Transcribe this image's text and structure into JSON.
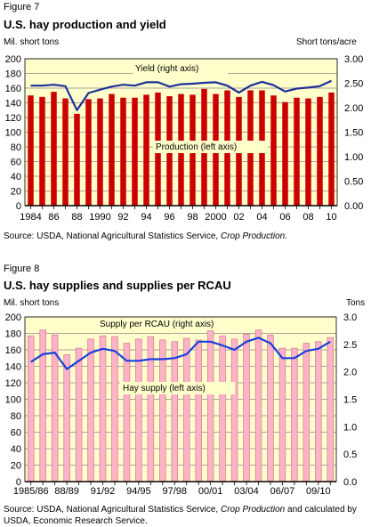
{
  "figure7": {
    "label": "Figure 7",
    "title": "U.S. hay production and yield",
    "left_unit": "Mil. short tons",
    "right_unit": "Short tons/acre",
    "source_prefix": "Source: USDA, National Agricultural Statistics Service, ",
    "source_italic": "Crop Production",
    "source_suffix": "."
  },
  "figure8": {
    "label": "Figure 8",
    "title": "U.S. hay supplies and supplies per RCAU",
    "left_unit": "Mil. short tons",
    "right_unit": "Tons",
    "source_prefix": "Source: USDA, National Agricultural Statistics Service, ",
    "source_italic": "Crop Production",
    "source_suffix": " and calculated by USDA, Economic Research Service."
  },
  "chart_data": [
    {
      "type": "bar",
      "title": "U.S. hay production and yield",
      "colors": {
        "bar": "#cc0000",
        "line": "#1f2f99",
        "plot_bg": "#ffffcc",
        "grid": "#888888"
      },
      "xtick_labels": [
        "1984",
        "86",
        "88",
        "1990",
        "92",
        "94",
        "96",
        "98",
        "2000",
        "02",
        "04",
        "06",
        "08",
        "10"
      ],
      "categories": [
        "1984",
        "1985",
        "1986",
        "1987",
        "1988",
        "1989",
        "1990",
        "1991",
        "1992",
        "1993",
        "1994",
        "1995",
        "1996",
        "1997",
        "1998",
        "1999",
        "2000",
        "2001",
        "2002",
        "2003",
        "2004",
        "2005",
        "2006",
        "2007",
        "2008",
        "2009",
        "2010"
      ],
      "series": [
        {
          "name": "Production (left axis)",
          "axis": "left",
          "values": [
            150,
            148,
            155,
            146,
            125,
            145,
            146,
            152,
            147,
            147,
            151,
            154,
            149,
            152,
            151,
            159,
            152,
            157,
            148,
            157,
            157,
            150,
            141,
            147,
            146,
            148,
            154
          ]
        },
        {
          "name": "Yield (right axis)",
          "axis": "right",
          "values": [
            2.45,
            2.45,
            2.47,
            2.44,
            1.95,
            2.3,
            2.37,
            2.43,
            2.47,
            2.45,
            2.52,
            2.52,
            2.43,
            2.48,
            2.49,
            2.51,
            2.52,
            2.45,
            2.31,
            2.45,
            2.53,
            2.46,
            2.33,
            2.39,
            2.41,
            2.44,
            2.55
          ]
        }
      ],
      "yleft_lim": [
        0,
        200
      ],
      "yleft_ticks": [
        0,
        20,
        40,
        60,
        80,
        100,
        120,
        140,
        160,
        180,
        200
      ],
      "yright_lim": [
        0,
        3
      ],
      "yright_ticks": [
        "0.00",
        "0.50",
        "1.00",
        "1.50",
        "2.00",
        "2.50",
        "3.00"
      ],
      "grid": true
    },
    {
      "type": "bar",
      "title": "U.S. hay supplies and supplies per RCAU",
      "colors": {
        "bar": "#ffb3c6",
        "bar_edge": "#d88099",
        "line": "#1a3fdd",
        "plot_bg": "#ffffcc",
        "grid": "#888888"
      },
      "xtick_labels": [
        "1985/86",
        "88/89",
        "91/92",
        "94/95",
        "97/98",
        "00/01",
        "03/04",
        "06/07",
        "09/10"
      ],
      "categories": [
        "1985/86",
        "1986/87",
        "1987/88",
        "1988/89",
        "1989/90",
        "1990/91",
        "1991/92",
        "1992/93",
        "1993/94",
        "1994/95",
        "1995/96",
        "1996/97",
        "1997/98",
        "1998/99",
        "1999/00",
        "2000/01",
        "2001/02",
        "2002/03",
        "2003/04",
        "2004/05",
        "2005/06",
        "2006/07",
        "2007/08",
        "2008/09",
        "2009/10",
        "2010/11"
      ],
      "series": [
        {
          "name": "Hay supply (left axis)",
          "axis": "left",
          "values": [
            177,
            184,
            178,
            154,
            162,
            173,
            177,
            176,
            168,
            173,
            176,
            172,
            170,
            174,
            172,
            183,
            177,
            173,
            179,
            184,
            178,
            162,
            162,
            168,
            170,
            175
          ]
        },
        {
          "name": "Supply per RCAU (right axis)",
          "axis": "right",
          "values": [
            2.18,
            2.32,
            2.35,
            2.05,
            2.2,
            2.35,
            2.42,
            2.38,
            2.2,
            2.2,
            2.23,
            2.23,
            2.25,
            2.32,
            2.55,
            2.55,
            2.48,
            2.4,
            2.55,
            2.62,
            2.52,
            2.25,
            2.25,
            2.38,
            2.42,
            2.55
          ]
        }
      ],
      "yleft_lim": [
        0,
        200
      ],
      "yleft_ticks": [
        0,
        20,
        40,
        60,
        80,
        100,
        120,
        140,
        160,
        180,
        200
      ],
      "yright_lim": [
        0,
        3
      ],
      "yright_ticks": [
        "0.0",
        "0.5",
        "1.0",
        "1.5",
        "2.0",
        "2.5",
        "3.0"
      ],
      "grid": true
    }
  ]
}
